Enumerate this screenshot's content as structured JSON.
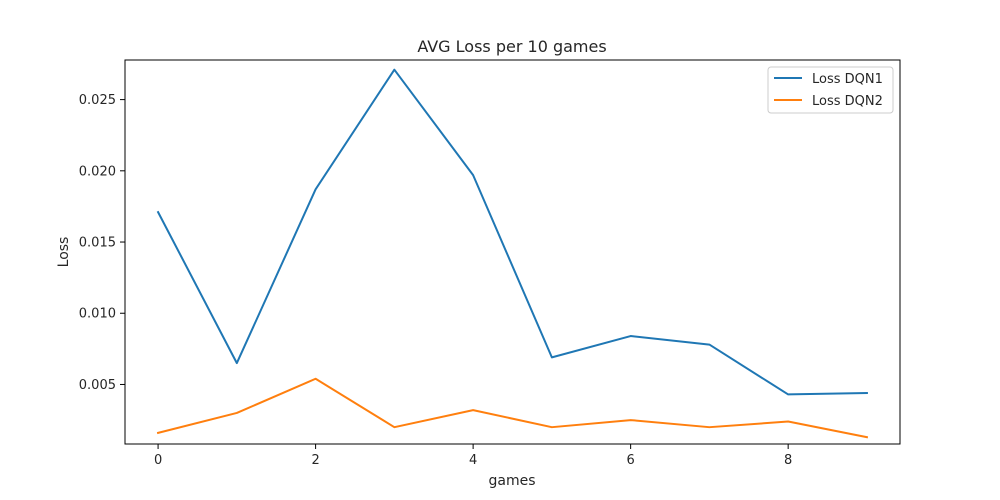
{
  "chart_data": {
    "type": "line",
    "title": "AVG Loss per 10 games",
    "xlabel": "games",
    "ylabel": "Loss",
    "x": [
      0,
      1,
      2,
      3,
      4,
      5,
      6,
      7,
      8,
      9
    ],
    "xlim": [
      -0.42,
      9.42
    ],
    "ylim": [
      0.00082,
      0.02778
    ],
    "xticks": [
      0,
      2,
      4,
      6,
      8
    ],
    "yticks": [
      0.005,
      0.01,
      0.015,
      0.02,
      0.025
    ],
    "ytick_labels": [
      "0.005",
      "0.010",
      "0.015",
      "0.020",
      "0.025"
    ],
    "grid": false,
    "legend_position": "top-right",
    "series": [
      {
        "name": "Loss DQN1",
        "color": "#1f77b4",
        "values": [
          0.0171,
          0.0065,
          0.0187,
          0.0271,
          0.0197,
          0.0069,
          0.0084,
          0.0078,
          0.0043,
          0.0044
        ]
      },
      {
        "name": "Loss DQN2",
        "color": "#ff7f0e",
        "values": [
          0.0016,
          0.003,
          0.0054,
          0.002,
          0.0032,
          0.002,
          0.0025,
          0.002,
          0.0024,
          0.0013
        ]
      }
    ]
  }
}
